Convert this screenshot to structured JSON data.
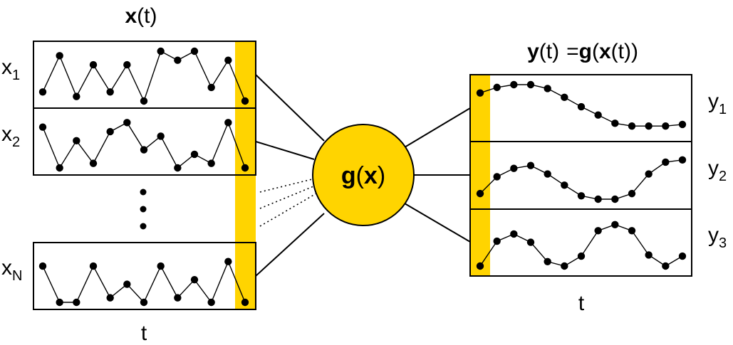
{
  "colors": {
    "highlight": "#ffd400",
    "ink": "#000000",
    "background": "#ffffff"
  },
  "left": {
    "title_bold": "x",
    "title_rest": "(t)",
    "axis_label": "t",
    "rows": [
      {
        "name": "x",
        "sub": "1",
        "values": [
          2,
          10,
          1,
          8,
          2,
          8,
          0,
          11,
          9,
          11,
          3,
          9,
          0
        ]
      },
      {
        "name": "x",
        "sub": "2",
        "values": [
          9,
          0,
          6,
          1,
          8,
          10,
          4,
          7,
          0,
          3,
          1,
          10,
          0
        ]
      },
      {
        "name": "x",
        "sub": "N",
        "values": [
          8,
          0,
          0,
          8,
          1,
          4,
          0,
          8,
          1,
          5,
          0,
          9,
          0
        ]
      }
    ],
    "ellipsis": "⋮"
  },
  "center": {
    "label_bold_g": "g",
    "label_open": "(",
    "label_bold_x": "x",
    "label_close": ")"
  },
  "right": {
    "title": {
      "y": "y",
      "yt": "(t)",
      "eq": "=",
      "g": "g",
      "open": "(",
      "x": "x",
      "xt": "(t))"
    },
    "axis_label": "t",
    "rows": [
      {
        "name": "y",
        "sub": "1",
        "values": [
          7,
          8,
          8.5,
          8.5,
          7.8,
          6.2,
          4.5,
          3,
          1.5,
          1,
          1,
          1,
          1.3
        ]
      },
      {
        "name": "y",
        "sub": "2",
        "values": [
          1,
          4,
          5.5,
          6,
          4.5,
          2.5,
          0.6,
          0,
          0,
          1,
          4.5,
          6.6,
          7
        ]
      },
      {
        "name": "y",
        "sub": "3",
        "values": [
          0,
          4.5,
          5.8,
          4.3,
          0.8,
          0,
          1.8,
          6.4,
          7.5,
          6.4,
          2,
          0,
          1.8
        ]
      }
    ]
  }
}
